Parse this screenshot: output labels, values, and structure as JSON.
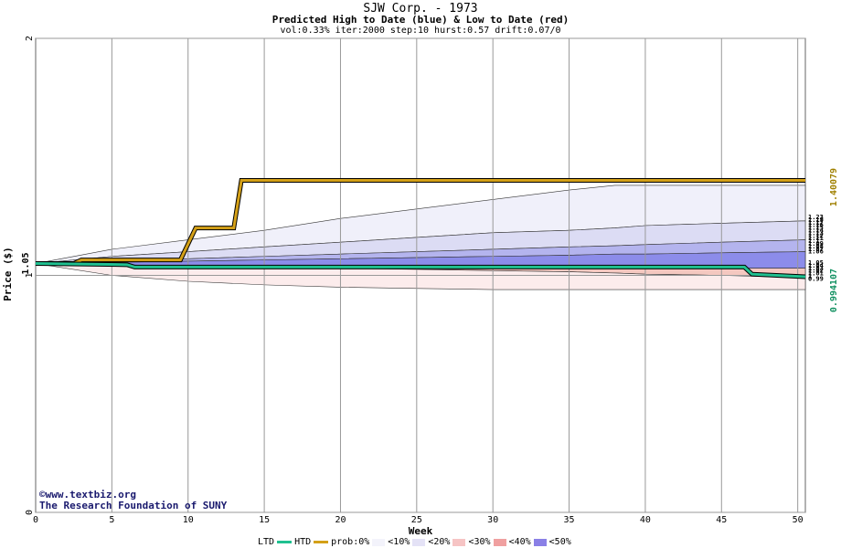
{
  "header": {
    "title": "SJW Corp. - 1973",
    "subtitle": "Predicted High to Date (blue) &  Low to Date (red)",
    "params": "vol:0.33% iter:2000 step:10 hurst:0.57 drift:0.07/0"
  },
  "credits": {
    "line1": "©www.textbiz.org",
    "line2": "The Research Foundation of SUNY"
  },
  "chart_data": {
    "type": "area",
    "xlabel": "Week",
    "ylabel": "Price ($)",
    "xlim": [
      0,
      50.5
    ],
    "ylim": [
      0,
      2
    ],
    "x_ticks": [
      "0",
      "5",
      "10",
      "15",
      "20",
      "25",
      "30",
      "35",
      "40",
      "45",
      "50"
    ],
    "y_ticks": [
      "0",
      "1",
      "2"
    ],
    "grid": true,
    "start_value": 1.05,
    "start_label": "1.05",
    "htd_final": 1.40079,
    "htd_final_label": "1.40079",
    "ltd_final": 0.994107,
    "ltd_final_label": "0.994107",
    "right_labels": [
      "1.23",
      "1.19",
      "1.17",
      "1.16",
      "1.15",
      "1.14",
      "1.13",
      "1.12",
      "1.11",
      "1.1",
      "1.09",
      "1.08",
      "1.07",
      "1.06",
      "1.05",
      "1.04",
      "1.03",
      "1.02",
      "1.01",
      "1",
      "0.99"
    ],
    "htd_path": [
      [
        0,
        1.05
      ],
      [
        2.5,
        1.05
      ],
      [
        3,
        1.065
      ],
      [
        9.5,
        1.065
      ],
      [
        10.5,
        1.2
      ],
      [
        13,
        1.2
      ],
      [
        13.5,
        1.40079
      ],
      [
        50.5,
        1.40079
      ]
    ],
    "ltd_path": [
      [
        0,
        1.05
      ],
      [
        6,
        1.045
      ],
      [
        6.5,
        1.035
      ],
      [
        46.5,
        1.035
      ],
      [
        47,
        1.005
      ],
      [
        50.5,
        0.994107
      ]
    ],
    "bands": {
      "x": [
        0,
        5,
        10,
        15,
        20,
        25,
        30,
        35,
        38,
        40,
        45,
        50.5
      ],
      "high_outer": [
        1.05,
        1.11,
        1.15,
        1.19,
        1.24,
        1.28,
        1.32,
        1.36,
        1.38,
        1.38,
        1.38,
        1.38
      ],
      "high_inner": [
        1.05,
        1.08,
        1.1,
        1.12,
        1.14,
        1.16,
        1.18,
        1.19,
        1.2,
        1.21,
        1.22,
        1.23
      ],
      "high_mid": [
        1.05,
        1.06,
        1.07,
        1.08,
        1.09,
        1.1,
        1.11,
        1.12,
        1.125,
        1.13,
        1.14,
        1.15
      ],
      "high_core": [
        1.05,
        1.055,
        1.06,
        1.065,
        1.07,
        1.075,
        1.08,
        1.085,
        1.09,
        1.09,
        1.095,
        1.1
      ],
      "low_core": [
        1.05,
        1.045,
        1.04,
        1.04,
        1.035,
        1.035,
        1.035,
        1.03,
        1.03,
        1.03,
        1.03,
        1.03
      ],
      "low_inner": [
        1.05,
        1.04,
        1.035,
        1.03,
        1.03,
        1.025,
        1.02,
        1.015,
        1.01,
        1.005,
        1.0,
        0.99
      ],
      "low_outer": [
        1.05,
        1.0,
        0.975,
        0.96,
        0.95,
        0.945,
        0.94,
        0.94,
        0.94,
        0.94,
        0.94,
        0.94
      ]
    },
    "colors": {
      "htd": "#d4a017",
      "ltd": "#20c090",
      "high_outer": "#f0f0fa",
      "high_inner": "#dcdcf4",
      "high_mid": "#b4b4ee",
      "high_core": "#8c8cea",
      "low_core": "#e87070",
      "low_inner": "#f4c8c0",
      "low_outer": "#fcecec",
      "grid": "#999999",
      "axis_right_high": "#a08000",
      "axis_right_low": "#109060"
    }
  },
  "legend": {
    "ltd": "LTD",
    "htd": "HTD",
    "prob": "prob:0%",
    "items": [
      "<10%",
      "<20%",
      "<30%",
      "<40%",
      "<50%"
    ],
    "colors": [
      "#f3f3fb",
      "#e4e2f6",
      "#c8c0ee",
      "#a8a0ea",
      "#8a80e6"
    ],
    "red_colors": [
      "#fdf2f2",
      "#fbe0e0",
      "#f6c4c4",
      "#f0a0a0",
      "#e87878"
    ]
  }
}
